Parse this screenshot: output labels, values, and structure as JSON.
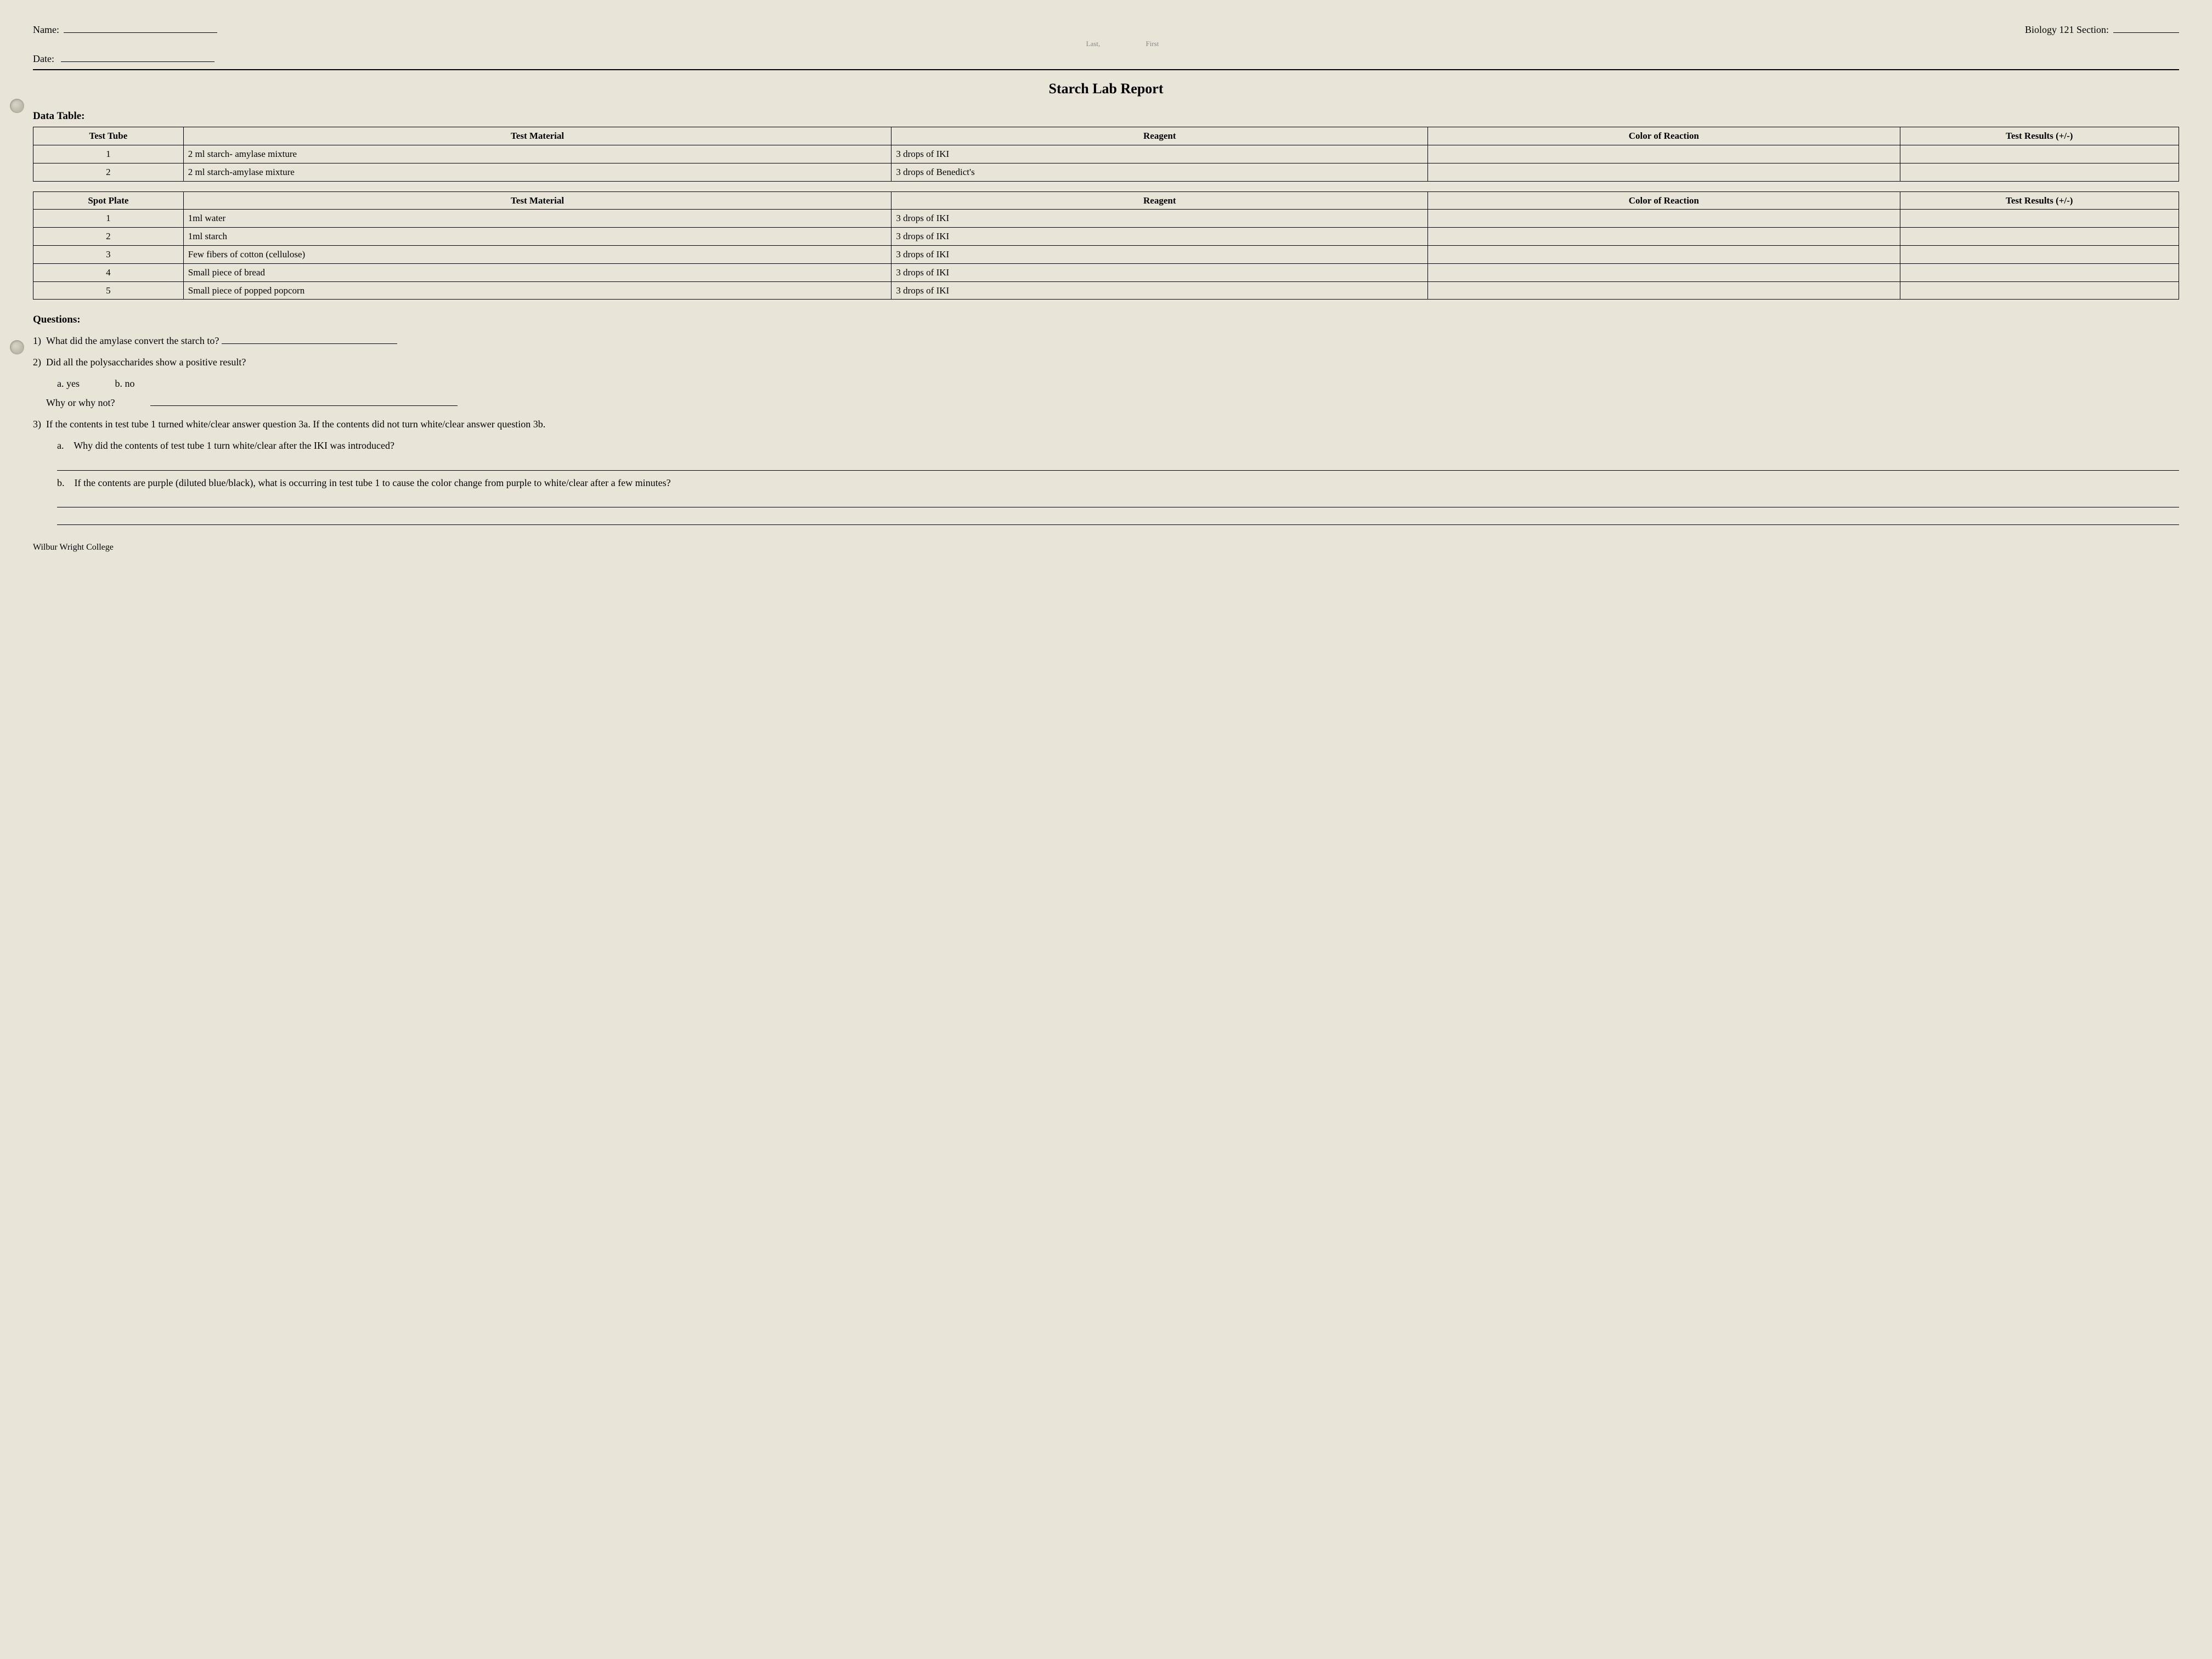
{
  "header": {
    "name_label": "Name:",
    "last_hint": "Last,",
    "first_hint": "First",
    "date_label": "Date:",
    "section_label": "Biology 121 Section:"
  },
  "title": "Starch Lab Report",
  "data_table_label": "Data Table:",
  "table1": {
    "headers": [
      "Test Tube",
      "Test Material",
      "Reagent",
      "Color of Reaction",
      "Test Results (+/-)"
    ],
    "rows": [
      [
        "1",
        "2 ml starch- amylase mixture",
        "3 drops of IKI",
        "",
        ""
      ],
      [
        "2",
        "2 ml starch-amylase mixture",
        "3 drops of Benedict's",
        "",
        ""
      ]
    ]
  },
  "table2": {
    "headers": [
      "Spot Plate",
      "Test Material",
      "Reagent",
      "Color of Reaction",
      "Test Results (+/-)"
    ],
    "rows": [
      [
        "1",
        "1ml water",
        "3 drops of IKI",
        "",
        ""
      ],
      [
        "2",
        "1ml starch",
        "3 drops of IKI",
        "",
        ""
      ],
      [
        "3",
        "Few fibers of cotton (cellulose)",
        "3 drops of IKI",
        "",
        ""
      ],
      [
        "4",
        "Small piece of bread",
        "3 drops of IKI",
        "",
        ""
      ],
      [
        "5",
        "Small piece of popped popcorn",
        "3 drops of IKI",
        "",
        ""
      ]
    ]
  },
  "questions": {
    "title": "Questions:",
    "q1": "What did the amylase convert the starch to?",
    "q2": "Did all the polysaccharides show a positive result?",
    "q2a": "a.  yes",
    "q2b": "b. no",
    "q2_why": "Why or why not?",
    "q3": "If the contents in test tube 1 turned white/clear answer question 3a. If the contents did not turn white/clear answer question 3b.",
    "q3a_label": "a.",
    "q3a": "Why did the contents of test tube 1 turn white/clear after the IKI was introduced?",
    "q3b_label": "b.",
    "q3b": "If the contents are purple (diluted blue/black), what is occurring in test tube 1 to cause the color change from purple to white/clear after a few minutes?"
  },
  "footer": "Wilbur Wright College"
}
